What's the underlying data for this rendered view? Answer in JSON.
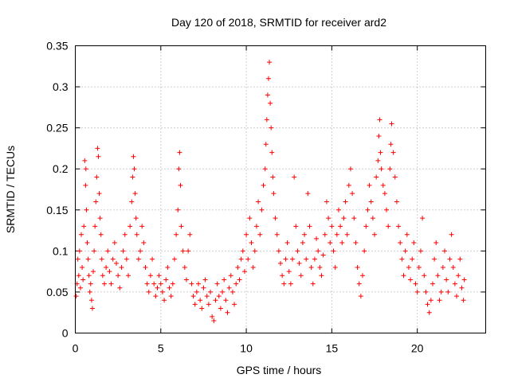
{
  "chart_data": {
    "type": "scatter",
    "title": "Day 120 of 2018, SRMTID for receiver ard2",
    "xlabel": "GPS time / hours",
    "ylabel": "SRMTID / TECUs",
    "xlim": [
      0,
      24
    ],
    "ylim": [
      0,
      0.35
    ],
    "grid": true,
    "marker": "+",
    "color": "#ff0000",
    "x_ticks": [
      {
        "value": 0,
        "label": "0"
      },
      {
        "value": 5,
        "label": "5"
      },
      {
        "value": 10,
        "label": "10"
      },
      {
        "value": 15,
        "label": "15"
      },
      {
        "value": 20,
        "label": "20"
      }
    ],
    "y_ticks": [
      {
        "value": 0,
        "label": "0"
      },
      {
        "value": 0.05,
        "label": "0.05"
      },
      {
        "value": 0.1,
        "label": "0.1"
      },
      {
        "value": 0.15,
        "label": "0.15"
      },
      {
        "value": 0.2,
        "label": "0.2"
      },
      {
        "value": 0.25,
        "label": "0.25"
      },
      {
        "value": 0.3,
        "label": "0.3"
      },
      {
        "value": 0.35,
        "label": "0.35"
      }
    ],
    "series": [
      {
        "name": "SRMTID",
        "points": [
          [
            0.05,
            0.045
          ],
          [
            0.1,
            0.06
          ],
          [
            0.15,
            0.09
          ],
          [
            0.2,
            0.07
          ],
          [
            0.25,
            0.1
          ],
          [
            0.3,
            0.055
          ],
          [
            0.35,
            0.12
          ],
          [
            0.4,
            0.08
          ],
          [
            0.45,
            0.065
          ],
          [
            0.5,
            0.13
          ],
          [
            0.55,
            0.21
          ],
          [
            0.6,
            0.18
          ],
          [
            0.62,
            0.2
          ],
          [
            0.65,
            0.15
          ],
          [
            0.7,
            0.11
          ],
          [
            0.75,
            0.09
          ],
          [
            0.8,
            0.07
          ],
          [
            0.85,
            0.05
          ],
          [
            0.9,
            0.06
          ],
          [
            0.95,
            0.04
          ],
          [
            1.0,
            0.03
          ],
          [
            1.05,
            0.075
          ],
          [
            1.1,
            0.1
          ],
          [
            1.15,
            0.13
          ],
          [
            1.2,
            0.16
          ],
          [
            1.25,
            0.19
          ],
          [
            1.3,
            0.225
          ],
          [
            1.35,
            0.215
          ],
          [
            1.4,
            0.17
          ],
          [
            1.45,
            0.14
          ],
          [
            1.5,
            0.12
          ],
          [
            1.55,
            0.09
          ],
          [
            1.6,
            0.07
          ],
          [
            1.7,
            0.06
          ],
          [
            1.8,
            0.08
          ],
          [
            1.9,
            0.1
          ],
          [
            2.0,
            0.075
          ],
          [
            2.1,
            0.06
          ],
          [
            2.2,
            0.09
          ],
          [
            2.3,
            0.11
          ],
          [
            2.4,
            0.085
          ],
          [
            2.5,
            0.07
          ],
          [
            2.6,
            0.055
          ],
          [
            2.7,
            0.08
          ],
          [
            2.8,
            0.1
          ],
          [
            2.9,
            0.12
          ],
          [
            3.0,
            0.09
          ],
          [
            3.1,
            0.07
          ],
          [
            3.2,
            0.13
          ],
          [
            3.3,
            0.16
          ],
          [
            3.35,
            0.19
          ],
          [
            3.4,
            0.215
          ],
          [
            3.45,
            0.2
          ],
          [
            3.5,
            0.17
          ],
          [
            3.55,
            0.14
          ],
          [
            3.6,
            0.12
          ],
          [
            3.7,
            0.09
          ],
          [
            3.8,
            0.1
          ],
          [
            3.9,
            0.13
          ],
          [
            4.0,
            0.11
          ],
          [
            4.1,
            0.08
          ],
          [
            4.2,
            0.06
          ],
          [
            4.3,
            0.05
          ],
          [
            4.4,
            0.07
          ],
          [
            4.5,
            0.09
          ],
          [
            4.6,
            0.06
          ],
          [
            4.7,
            0.045
          ],
          [
            4.8,
            0.055
          ],
          [
            4.9,
            0.07
          ],
          [
            5.0,
            0.06
          ],
          [
            5.1,
            0.05
          ],
          [
            5.2,
            0.04
          ],
          [
            5.3,
            0.065
          ],
          [
            5.4,
            0.08
          ],
          [
            5.5,
            0.055
          ],
          [
            5.6,
            0.045
          ],
          [
            5.7,
            0.06
          ],
          [
            5.8,
            0.09
          ],
          [
            5.9,
            0.12
          ],
          [
            6.0,
            0.15
          ],
          [
            6.05,
            0.2
          ],
          [
            6.1,
            0.22
          ],
          [
            6.15,
            0.18
          ],
          [
            6.2,
            0.13
          ],
          [
            6.3,
            0.1
          ],
          [
            6.4,
            0.08
          ],
          [
            6.5,
            0.065
          ],
          [
            6.6,
            0.1
          ],
          [
            6.7,
            0.12
          ],
          [
            6.8,
            0.06
          ],
          [
            6.9,
            0.045
          ],
          [
            7.0,
            0.035
          ],
          [
            7.1,
            0.05
          ],
          [
            7.2,
            0.06
          ],
          [
            7.3,
            0.04
          ],
          [
            7.4,
            0.03
          ],
          [
            7.5,
            0.055
          ],
          [
            7.6,
            0.065
          ],
          [
            7.7,
            0.045
          ],
          [
            7.8,
            0.035
          ],
          [
            7.9,
            0.05
          ],
          [
            8.0,
            0.02
          ],
          [
            8.1,
            0.015
          ],
          [
            8.2,
            0.04
          ],
          [
            8.3,
            0.06
          ],
          [
            8.4,
            0.045
          ],
          [
            8.5,
            0.03
          ],
          [
            8.6,
            0.05
          ],
          [
            8.7,
            0.065
          ],
          [
            8.8,
            0.04
          ],
          [
            8.9,
            0.025
          ],
          [
            9.0,
            0.055
          ],
          [
            9.1,
            0.07
          ],
          [
            9.2,
            0.05
          ],
          [
            9.3,
            0.035
          ],
          [
            9.4,
            0.06
          ],
          [
            9.5,
            0.08
          ],
          [
            9.6,
            0.065
          ],
          [
            9.7,
            0.09
          ],
          [
            9.8,
            0.1
          ],
          [
            9.9,
            0.075
          ],
          [
            10.0,
            0.12
          ],
          [
            10.1,
            0.09
          ],
          [
            10.2,
            0.14
          ],
          [
            10.3,
            0.11
          ],
          [
            10.4,
            0.08
          ],
          [
            10.5,
            0.1
          ],
          [
            10.6,
            0.13
          ],
          [
            10.7,
            0.16
          ],
          [
            10.8,
            0.12
          ],
          [
            10.9,
            0.15
          ],
          [
            11.0,
            0.18
          ],
          [
            11.1,
            0.2
          ],
          [
            11.15,
            0.23
          ],
          [
            11.2,
            0.26
          ],
          [
            11.25,
            0.29
          ],
          [
            11.3,
            0.31
          ],
          [
            11.35,
            0.33
          ],
          [
            11.4,
            0.28
          ],
          [
            11.45,
            0.25
          ],
          [
            11.5,
            0.22
          ],
          [
            11.55,
            0.19
          ],
          [
            11.6,
            0.17
          ],
          [
            11.7,
            0.14
          ],
          [
            11.8,
            0.12
          ],
          [
            11.9,
            0.1
          ],
          [
            12.0,
            0.085
          ],
          [
            12.1,
            0.07
          ],
          [
            12.2,
            0.06
          ],
          [
            12.3,
            0.09
          ],
          [
            12.4,
            0.11
          ],
          [
            12.5,
            0.075
          ],
          [
            12.6,
            0.06
          ],
          [
            12.7,
            0.09
          ],
          [
            12.8,
            0.19
          ],
          [
            12.9,
            0.13
          ],
          [
            13.0,
            0.1
          ],
          [
            13.1,
            0.085
          ],
          [
            13.2,
            0.07
          ],
          [
            13.3,
            0.11
          ],
          [
            13.4,
            0.12
          ],
          [
            13.5,
            0.09
          ],
          [
            13.6,
            0.17
          ],
          [
            13.7,
            0.13
          ],
          [
            13.8,
            0.08
          ],
          [
            13.9,
            0.06
          ],
          [
            14.0,
            0.09
          ],
          [
            14.1,
            0.115
          ],
          [
            14.2,
            0.1
          ],
          [
            14.3,
            0.08
          ],
          [
            14.4,
            0.07
          ],
          [
            14.5,
            0.095
          ],
          [
            14.6,
            0.12
          ],
          [
            14.7,
            0.16
          ],
          [
            14.8,
            0.14
          ],
          [
            14.9,
            0.11
          ],
          [
            15.0,
            0.13
          ],
          [
            15.1,
            0.1
          ],
          [
            15.2,
            0.08
          ],
          [
            15.3,
            0.12
          ],
          [
            15.4,
            0.15
          ],
          [
            15.5,
            0.13
          ],
          [
            15.6,
            0.11
          ],
          [
            15.7,
            0.14
          ],
          [
            15.8,
            0.16
          ],
          [
            15.9,
            0.12
          ],
          [
            16.0,
            0.18
          ],
          [
            16.1,
            0.2
          ],
          [
            16.2,
            0.17
          ],
          [
            16.3,
            0.14
          ],
          [
            16.4,
            0.11
          ],
          [
            16.5,
            0.08
          ],
          [
            16.6,
            0.06
          ],
          [
            16.7,
            0.045
          ],
          [
            16.8,
            0.07
          ],
          [
            16.9,
            0.1
          ],
          [
            17.0,
            0.13
          ],
          [
            17.1,
            0.15
          ],
          [
            17.2,
            0.18
          ],
          [
            17.3,
            0.16
          ],
          [
            17.4,
            0.14
          ],
          [
            17.5,
            0.12
          ],
          [
            17.6,
            0.19
          ],
          [
            17.7,
            0.21
          ],
          [
            17.75,
            0.24
          ],
          [
            17.8,
            0.26
          ],
          [
            17.85,
            0.22
          ],
          [
            17.9,
            0.2
          ],
          [
            18.0,
            0.18
          ],
          [
            18.1,
            0.17
          ],
          [
            18.2,
            0.15
          ],
          [
            18.3,
            0.13
          ],
          [
            18.4,
            0.2
          ],
          [
            18.45,
            0.23
          ],
          [
            18.5,
            0.255
          ],
          [
            18.6,
            0.22
          ],
          [
            18.7,
            0.19
          ],
          [
            18.8,
            0.16
          ],
          [
            18.9,
            0.13
          ],
          [
            19.0,
            0.11
          ],
          [
            19.1,
            0.09
          ],
          [
            19.2,
            0.07
          ],
          [
            19.3,
            0.1
          ],
          [
            19.4,
            0.12
          ],
          [
            19.5,
            0.08
          ],
          [
            19.6,
            0.065
          ],
          [
            19.7,
            0.09
          ],
          [
            19.8,
            0.11
          ],
          [
            19.9,
            0.06
          ],
          [
            20.0,
            0.05
          ],
          [
            20.1,
            0.08
          ],
          [
            20.2,
            0.1
          ],
          [
            20.3,
            0.14
          ],
          [
            20.4,
            0.07
          ],
          [
            20.5,
            0.05
          ],
          [
            20.6,
            0.035
          ],
          [
            20.7,
            0.025
          ],
          [
            20.8,
            0.04
          ],
          [
            20.9,
            0.06
          ],
          [
            21.0,
            0.09
          ],
          [
            21.1,
            0.11
          ],
          [
            21.2,
            0.07
          ],
          [
            21.3,
            0.04
          ],
          [
            21.4,
            0.05
          ],
          [
            21.5,
            0.08
          ],
          [
            21.6,
            0.1
          ],
          [
            21.7,
            0.065
          ],
          [
            21.8,
            0.05
          ],
          [
            21.9,
            0.09
          ],
          [
            22.0,
            0.12
          ],
          [
            22.1,
            0.08
          ],
          [
            22.2,
            0.06
          ],
          [
            22.3,
            0.045
          ],
          [
            22.4,
            0.07
          ],
          [
            22.5,
            0.09
          ],
          [
            22.6,
            0.055
          ],
          [
            22.7,
            0.04
          ],
          [
            22.75,
            0.065
          ]
        ]
      }
    ]
  }
}
